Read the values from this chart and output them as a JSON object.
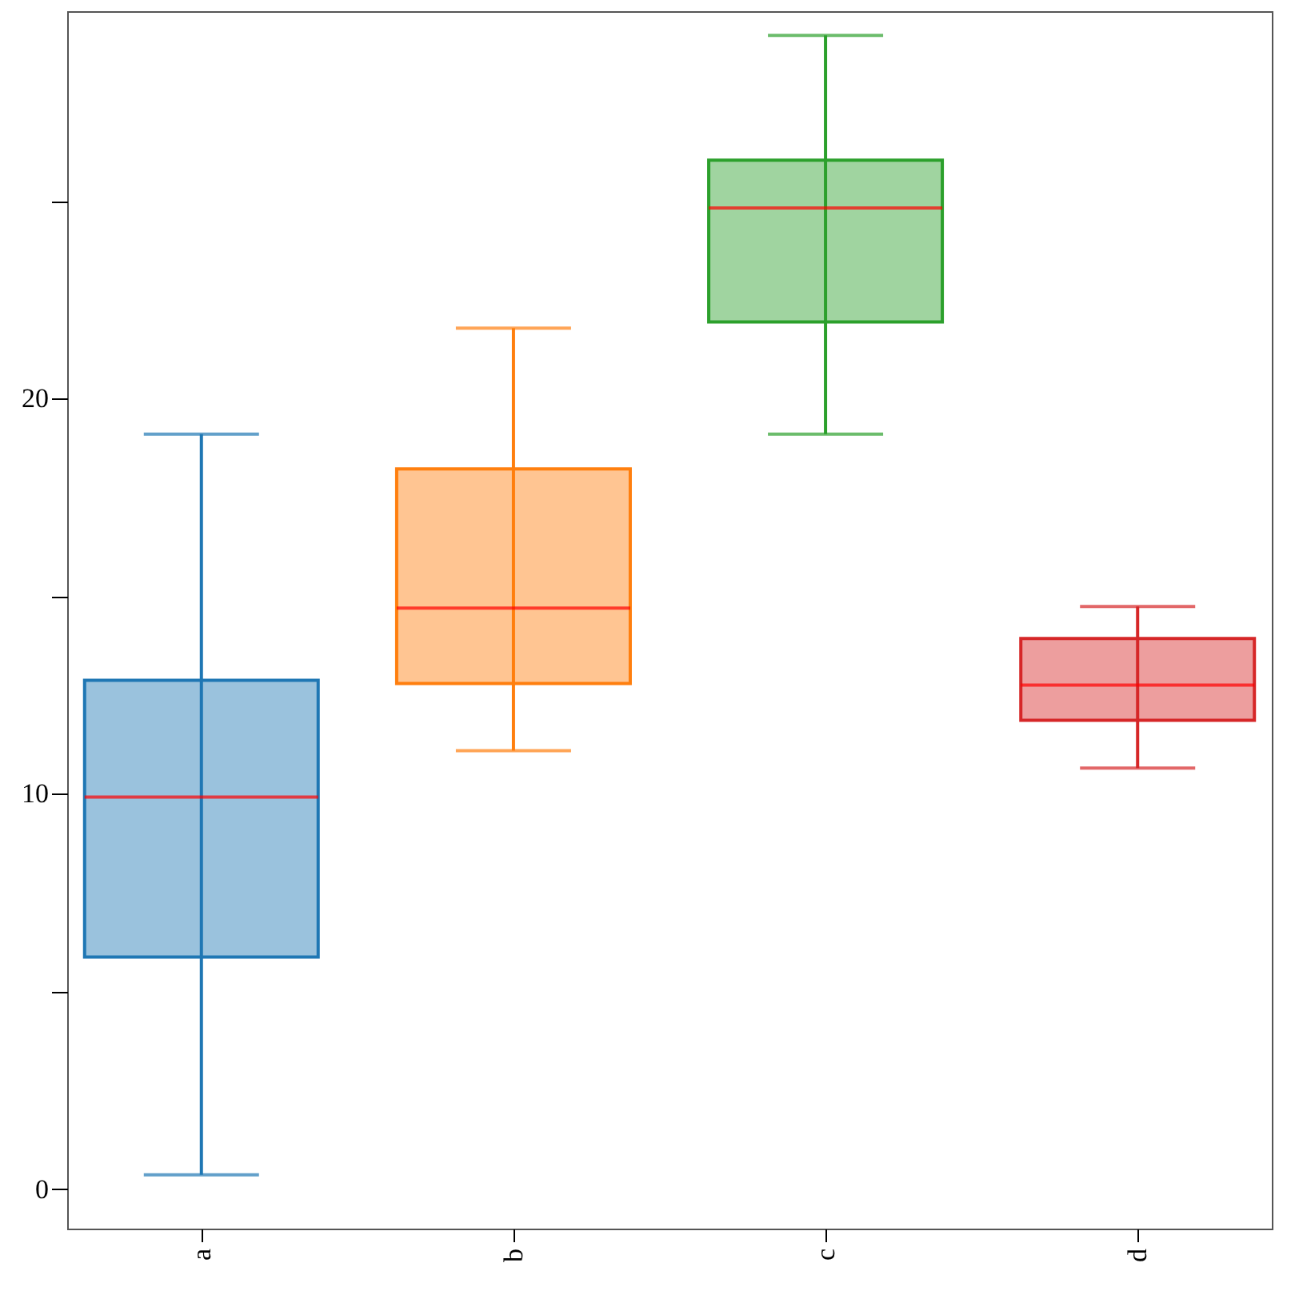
{
  "chart_data": {
    "type": "box",
    "categories": [
      "a",
      "b",
      "c",
      "d"
    ],
    "boxes": [
      {
        "low": 0.36,
        "q1": 5.87,
        "median": 9.92,
        "q3": 12.87,
        "high": 19.1
      },
      {
        "low": 11.09,
        "q1": 12.79,
        "median": 14.7,
        "q3": 18.22,
        "high": 21.78
      },
      {
        "low": 19.1,
        "q1": 21.94,
        "median": 24.82,
        "q3": 26.03,
        "high": 29.19
      },
      {
        "low": 10.65,
        "q1": 11.86,
        "median": 12.75,
        "q3": 13.93,
        "high": 14.74
      }
    ],
    "colors": [
      "#1f77b4",
      "#ff7f0e",
      "#2ca02c",
      "#d62728"
    ],
    "ylim": [
      -1,
      29.8
    ],
    "yticks": [
      0,
      {
        "value": 5,
        "label": null
      },
      10,
      {
        "value": 15,
        "label": null
      },
      20,
      {
        "value": 25,
        "label": null
      }
    ],
    "grid": false
  }
}
